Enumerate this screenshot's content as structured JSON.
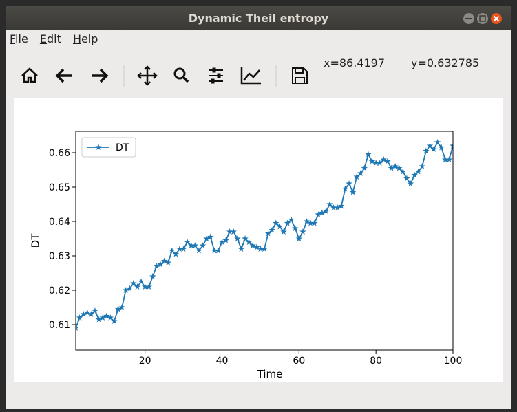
{
  "window": {
    "title": "Dynamic Theil entropy"
  },
  "menu": [
    "File",
    "Edit",
    "Help"
  ],
  "toolbar": {
    "x_readout": "x=86.4197",
    "y_readout": "y=0.632785"
  },
  "chart_data": {
    "type": "line",
    "xlabel": "Time",
    "ylabel": "DT",
    "x": [
      2,
      3,
      4,
      5,
      6,
      7,
      8,
      9,
      10,
      11,
      12,
      13,
      14,
      15,
      16,
      17,
      18,
      19,
      20,
      21,
      22,
      23,
      24,
      25,
      26,
      27,
      28,
      29,
      30,
      31,
      32,
      33,
      34,
      35,
      36,
      37,
      38,
      39,
      40,
      41,
      42,
      43,
      44,
      45,
      46,
      47,
      48,
      49,
      50,
      51,
      52,
      53,
      54,
      55,
      56,
      57,
      58,
      59,
      60,
      61,
      62,
      63,
      64,
      65,
      66,
      67,
      68,
      69,
      70,
      71,
      72,
      73,
      74,
      75,
      76,
      77,
      78,
      79,
      80,
      81,
      82,
      83,
      84,
      85,
      86,
      87,
      88,
      89,
      90,
      91,
      92,
      93,
      94,
      95,
      96,
      97,
      98,
      99,
      100
    ],
    "series": [
      {
        "name": "DT",
        "color": "#1f77b4",
        "marker": "star",
        "values": [
          0.609,
          0.612,
          0.613,
          0.6135,
          0.613,
          0.614,
          0.6115,
          0.612,
          0.6125,
          0.612,
          0.611,
          0.6145,
          0.615,
          0.62,
          0.6205,
          0.622,
          0.621,
          0.6225,
          0.621,
          0.621,
          0.624,
          0.627,
          0.6275,
          0.6285,
          0.628,
          0.6315,
          0.6305,
          0.632,
          0.632,
          0.634,
          0.633,
          0.633,
          0.6315,
          0.633,
          0.635,
          0.6355,
          0.6315,
          0.6315,
          0.634,
          0.6345,
          0.637,
          0.637,
          0.635,
          0.632,
          0.635,
          0.634,
          0.633,
          0.6325,
          0.632,
          0.632,
          0.6365,
          0.6375,
          0.6395,
          0.6385,
          0.637,
          0.6395,
          0.6405,
          0.638,
          0.635,
          0.637,
          0.64,
          0.6395,
          0.6395,
          0.642,
          0.6425,
          0.643,
          0.645,
          0.644,
          0.644,
          0.6445,
          0.6495,
          0.651,
          0.6485,
          0.653,
          0.654,
          0.6555,
          0.6595,
          0.6575,
          0.657,
          0.657,
          0.658,
          0.6575,
          0.6555,
          0.656,
          0.6555,
          0.6545,
          0.6525,
          0.651,
          0.6535,
          0.6545,
          0.656,
          0.6605,
          0.662,
          0.661,
          0.663,
          0.6615,
          0.658,
          0.658,
          0.662
        ]
      }
    ],
    "xlim": [
      2,
      100
    ],
    "ylim": [
      0.6026,
      0.6662
    ],
    "xticks": [
      20,
      40,
      60,
      80,
      100
    ],
    "yticks": [
      0.61,
      0.62,
      0.63,
      0.64,
      0.65,
      0.66
    ],
    "legend": "upper left"
  }
}
